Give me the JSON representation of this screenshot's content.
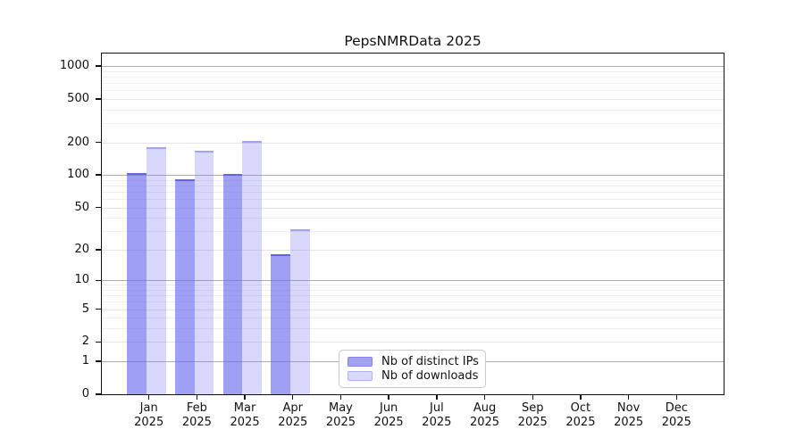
{
  "title": "PepsNMRData 2025",
  "legend": {
    "position": "bottom-center-inside",
    "items": [
      {
        "label": "Nb of distinct IPs",
        "color": "#a2a2ef",
        "edge": "rgba(100,100,235,0.5)"
      },
      {
        "label": "Nb of downloads",
        "color": "#d9d9f8",
        "edge": "rgba(100,100,235,0.35)"
      }
    ]
  },
  "chart_data": {
    "type": "bar",
    "title": "PepsNMRData 2025",
    "categories": [
      "Jan 2025",
      "Feb 2025",
      "Mar 2025",
      "Apr 2025",
      "May 2025",
      "Jun 2025",
      "Jul 2025",
      "Aug 2025",
      "Sep 2025",
      "Oct 2025",
      "Nov 2025",
      "Dec 2025"
    ],
    "series": [
      {
        "name": "Nb of distinct IPs",
        "fill": "rgba(100,100,235,0.62)",
        "edge": "rgba(90,90,230,0.85)",
        "values": [
          105,
          92,
          103,
          18,
          null,
          null,
          null,
          null,
          null,
          null,
          null,
          null
        ]
      },
      {
        "name": "Nb of downloads",
        "fill": "rgba(100,100,235,0.25)",
        "edge": "rgba(100,100,235,0.45)",
        "values": [
          180,
          168,
          207,
          31,
          null,
          null,
          null,
          null,
          null,
          null,
          null,
          null
        ]
      }
    ],
    "xlabel": "",
    "ylabel": "",
    "yscale": "symlog-log1p",
    "ylim": [
      0,
      1300
    ],
    "yticks_labeled": [
      0,
      1,
      2,
      5,
      10,
      20,
      50,
      100,
      200,
      500,
      1000
    ],
    "yticks_minor": [
      3,
      4,
      6,
      7,
      8,
      9,
      30,
      40,
      60,
      70,
      80,
      90,
      300,
      400,
      600,
      700,
      800,
      900
    ],
    "grid": "horizontal-on",
    "colors": {
      "grid_major": "#b0b0b0",
      "grid_minor": "#eeeeee",
      "axis": "#111111",
      "background": "#ffffff"
    }
  }
}
